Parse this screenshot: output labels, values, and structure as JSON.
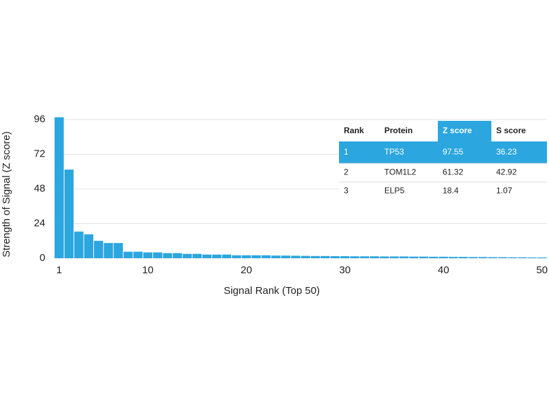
{
  "chart_data": {
    "type": "bar",
    "x_label": "Signal Rank (Top 50)",
    "y_label": "Strength of Signal (Z score)",
    "x": [
      1,
      2,
      3,
      4,
      5,
      6,
      7,
      8,
      9,
      10,
      11,
      12,
      13,
      14,
      15,
      16,
      17,
      18,
      19,
      20,
      21,
      22,
      23,
      24,
      25,
      26,
      27,
      28,
      29,
      30,
      31,
      32,
      33,
      34,
      35,
      36,
      37,
      38,
      39,
      40,
      41,
      42,
      43,
      44,
      45,
      46,
      47,
      48,
      49,
      50
    ],
    "values": [
      97.55,
      61.32,
      18.4,
      16.5,
      12,
      10.5,
      10.5,
      4.5,
      4.5,
      4,
      4,
      3.5,
      3.5,
      3,
      3,
      2.5,
      2.5,
      2.5,
      2,
      2,
      2,
      2,
      1.8,
      1.8,
      1.7,
      1.6,
      1.5,
      1.5,
      1.4,
      1.4,
      1.3,
      1.3,
      1.3,
      1.2,
      1.2,
      1.2,
      1.1,
      1.1,
      1,
      1,
      0.9,
      0.9,
      0.8,
      0.8,
      0.7,
      0.7,
      0.6,
      0.6,
      0.5,
      0.5
    ],
    "color": "#2ba6df",
    "xlim": [
      0.5,
      50.5
    ],
    "xticks": [
      1,
      10,
      20,
      30,
      40,
      50
    ],
    "ylim": [
      0,
      96
    ],
    "yticks": [
      0,
      24,
      48,
      72,
      96
    ],
    "grid": true,
    "table": {
      "columns": [
        "Rank",
        "Protein",
        "Z score",
        "S score"
      ],
      "rows": [
        [
          1,
          "TP53",
          97.55,
          36.23
        ],
        [
          2,
          "TOM1L2",
          61.32,
          42.92
        ],
        [
          3,
          "ELP5",
          18.4,
          1.07
        ]
      ],
      "highlight_row": 0,
      "highlight_column": 2,
      "highlight_color": "#2ba6df"
    }
  }
}
